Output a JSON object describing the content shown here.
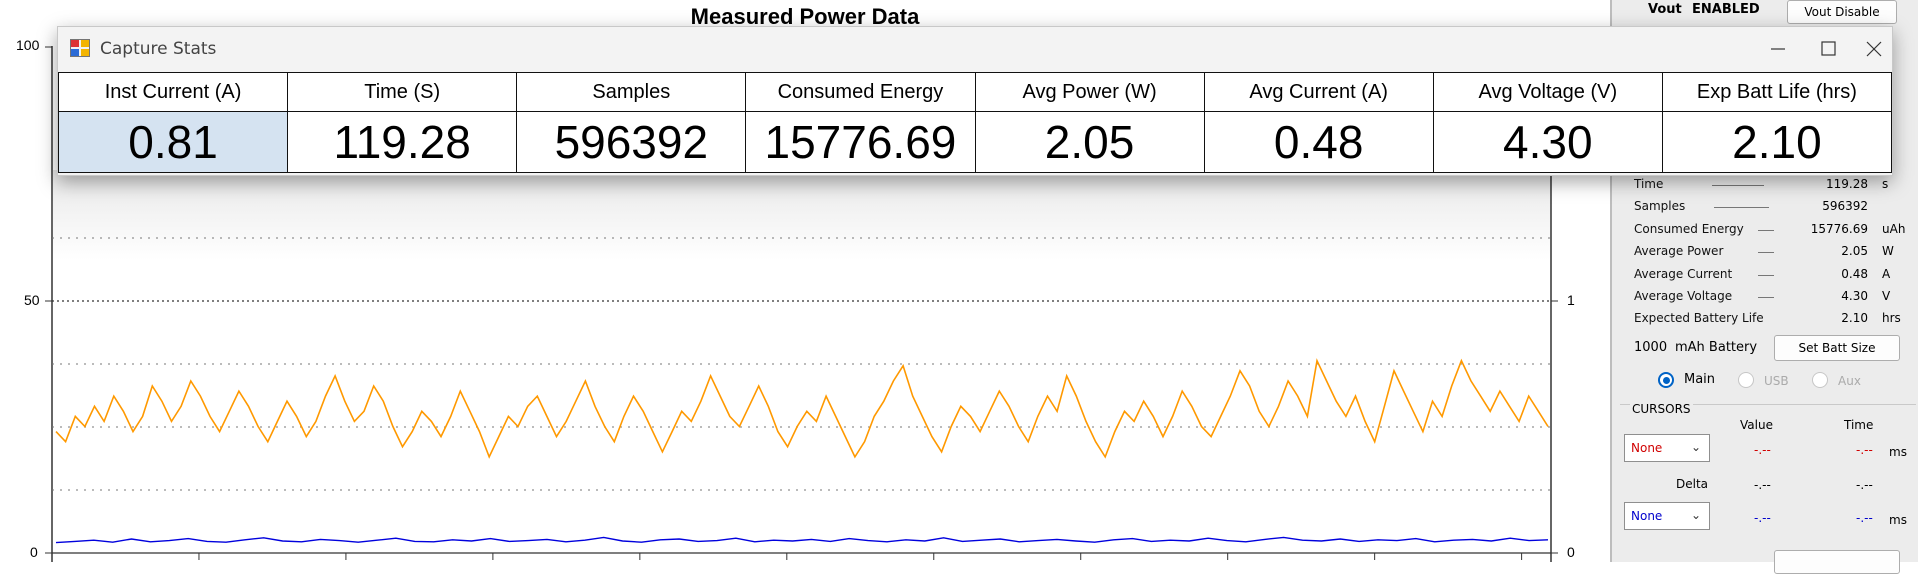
{
  "plot": {
    "title": "Measured Power Data",
    "y_left_ticks": [
      "100",
      "50",
      "0"
    ],
    "y_right_ticks": [
      "1",
      "0"
    ],
    "colors": {
      "power_trace": "#ff9900",
      "current_trace": "#0000dd",
      "grid": "#555555"
    }
  },
  "chart_data": {
    "type": "line",
    "title": "Measured Power Data",
    "xlabel": "",
    "ylabel": "",
    "ylim": [
      0,
      100
    ],
    "y2lim": [
      0,
      2
    ],
    "grid": true,
    "series": [
      {
        "values": [
          24,
          22,
          27,
          25,
          29,
          26,
          31,
          28,
          24,
          27,
          33,
          30,
          26,
          29,
          34,
          31,
          27,
          24,
          28,
          32,
          29,
          25,
          22,
          26,
          30,
          27,
          23,
          26,
          31,
          35,
          30,
          26,
          28,
          33,
          30,
          25,
          21,
          24,
          28,
          26,
          23,
          27,
          32,
          28,
          24,
          19,
          23,
          27,
          25,
          29,
          31,
          27,
          23,
          26,
          30,
          34,
          29,
          25,
          22,
          27,
          31,
          28,
          24,
          20,
          24,
          28,
          26,
          30,
          35,
          31,
          27,
          25,
          29,
          33,
          29,
          24,
          21,
          25,
          28,
          26,
          31,
          27,
          23,
          19,
          22,
          27,
          30,
          34,
          37,
          31,
          27,
          23,
          20,
          25,
          29,
          27,
          24,
          28,
          32,
          29,
          25,
          22,
          27,
          31,
          28,
          35,
          31,
          26,
          22,
          19,
          24,
          28,
          26,
          30,
          27,
          23,
          27,
          32,
          29,
          25,
          23,
          27,
          31,
          36,
          33,
          28,
          25,
          29,
          34,
          31,
          27,
          38,
          34,
          30,
          27,
          31,
          26,
          22,
          29,
          36,
          32,
          28,
          24,
          30,
          27,
          33,
          38,
          34,
          31,
          28,
          32,
          29,
          26,
          31,
          28,
          25
        ]
      },
      {
        "values": [
          1.6,
          1.9,
          2.2,
          1.7,
          2.5,
          1.8,
          2.1,
          2.6,
          1.9,
          1.7,
          2.3,
          2.8,
          2.0,
          1.8,
          2.4,
          2.1,
          1.7,
          2.2,
          2.7,
          1.9,
          1.8,
          2.3,
          2.0,
          2.6,
          1.9,
          2.1,
          2.4,
          1.8,
          2.2,
          2.9,
          2.0,
          1.7,
          2.3,
          2.5,
          1.9,
          2.1,
          2.7,
          1.8,
          2.2,
          2.0,
          2.4,
          1.9,
          2.6,
          2.1,
          1.8,
          2.3,
          2.0,
          2.8,
          1.9,
          2.2,
          2.5,
          1.8,
          2.1,
          2.4,
          2.0,
          1.7,
          2.3,
          2.6,
          1.9,
          2.2,
          2.0,
          2.7,
          2.1,
          1.8,
          2.4,
          2.9,
          2.2,
          2.0,
          2.5,
          1.9,
          2.3,
          2.1,
          2.6,
          1.8,
          2.2,
          2.4,
          2.0,
          2.7,
          2.1,
          2.3
        ]
      }
    ]
  },
  "right_panel": {
    "vout_label": "Vout",
    "vout_status": "ENABLED",
    "vout_disable_button": "Vout Disable",
    "stats": [
      {
        "label": "Time",
        "value": "119.28",
        "unit": "s"
      },
      {
        "label": "Samples",
        "value": "596392",
        "unit": ""
      },
      {
        "label": "Consumed Energy",
        "value": "15776.69",
        "unit": "uAh"
      },
      {
        "label": "Average Power",
        "value": "2.05",
        "unit": "W"
      },
      {
        "label": "Average Current",
        "value": "0.48",
        "unit": "A"
      },
      {
        "label": "Average Voltage",
        "value": "4.30",
        "unit": "V"
      },
      {
        "label": "Expected Battery Life",
        "value": "2.10",
        "unit": "hrs"
      }
    ],
    "battery_capacity": "1000",
    "battery_unit_label": "mAh Battery",
    "set_batt_button": "Set Batt Size",
    "radio": {
      "main": "Main",
      "usb": "USB",
      "aux": "Aux",
      "selected": "main"
    },
    "cursors": {
      "header": "CURSORS",
      "value_header": "Value",
      "time_header": "Time",
      "select1": "None",
      "value1": "-.--",
      "time1": "-.--",
      "unit1": "ms",
      "delta_label": "Delta",
      "delta_value": "-.--",
      "delta_time": "-.--",
      "select2": "None",
      "value2": "-.--",
      "time2": "-.--",
      "unit2": "ms"
    }
  },
  "capture_stats": {
    "window_title": "Capture Stats",
    "columns": [
      "Inst Current (A)",
      "Time (S)",
      "Samples",
      "Consumed Energy",
      "Avg Power (W)",
      "Avg Current (A)",
      "Avg Voltage (V)",
      "Exp Batt Life (hrs)"
    ],
    "values": [
      "0.81",
      "119.28",
      "596392",
      "15776.69",
      "2.05",
      "0.48",
      "4.30",
      "2.10"
    ],
    "highlight_color": "#d5e3f1"
  }
}
